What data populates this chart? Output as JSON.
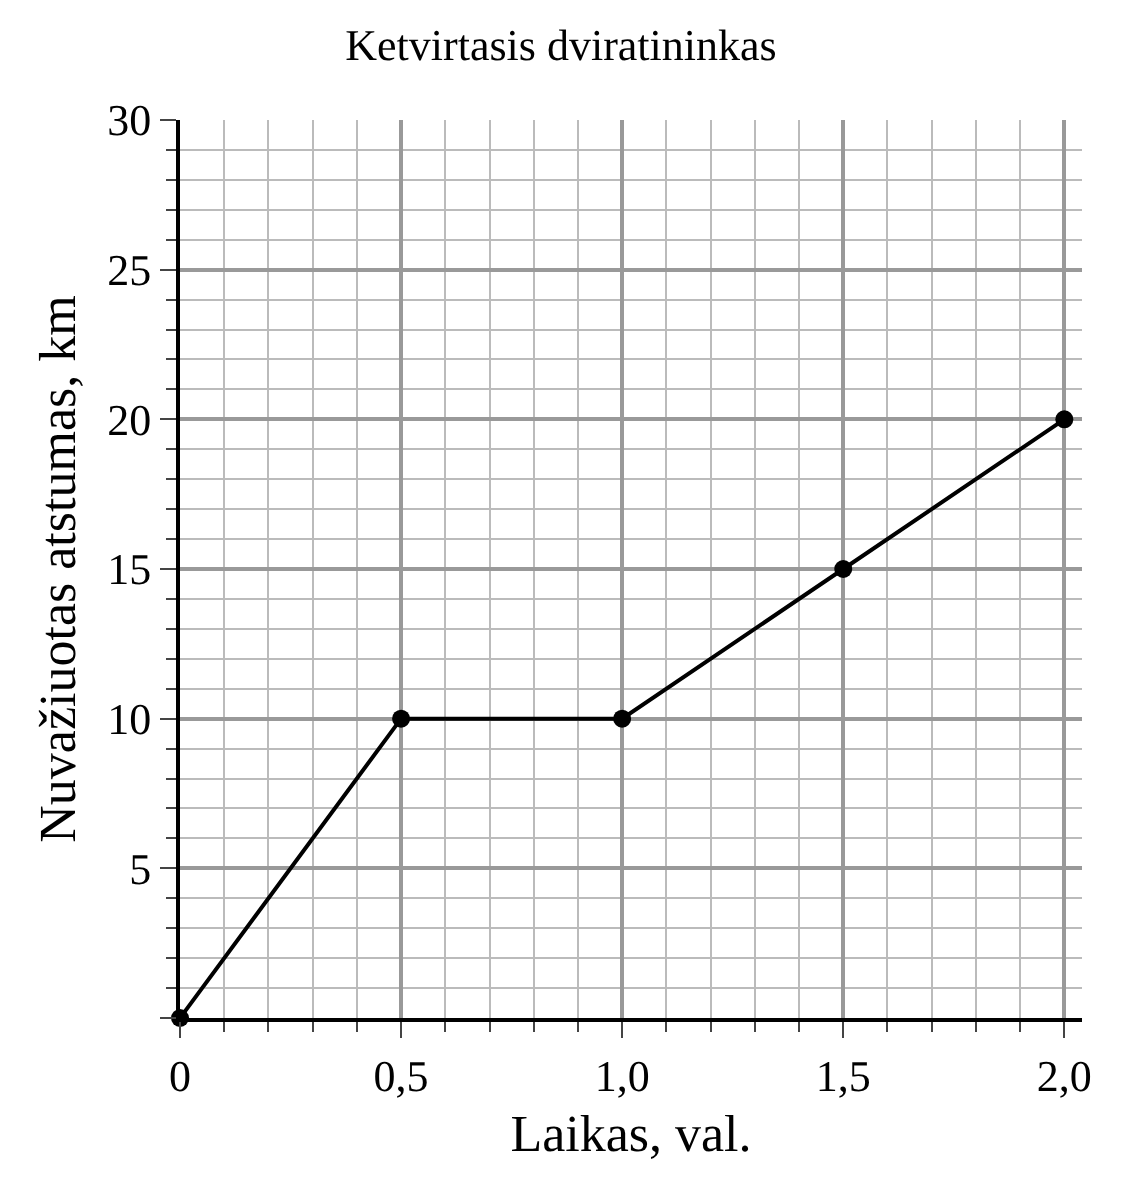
{
  "chart_data": {
    "type": "line",
    "title": "Ketvirtasis dviratininkas",
    "xlabel": "Laikas, val.",
    "ylabel": "Nuvažiuotas atstumas, km",
    "x": [
      0,
      0.5,
      1.0,
      1.5,
      2.0
    ],
    "series": [
      {
        "color": "#000000",
        "values": [
          0,
          10,
          10,
          15,
          20
        ]
      }
    ],
    "xlim": [
      0,
      2.04
    ],
    "ylim": [
      0,
      30
    ],
    "xticks": [
      {
        "value": 0,
        "label": "0"
      },
      {
        "value": 0.5,
        "label": "0,5"
      },
      {
        "value": 1.0,
        "label": "1,0"
      },
      {
        "value": 1.5,
        "label": "1,5"
      },
      {
        "value": 2.0,
        "label": "2,0"
      }
    ],
    "yticks": [
      {
        "value": 0,
        "label": null
      },
      5,
      10,
      15,
      20,
      25,
      30
    ],
    "grid": true,
    "marker": "circle",
    "line_style": "solid",
    "legend": false
  }
}
